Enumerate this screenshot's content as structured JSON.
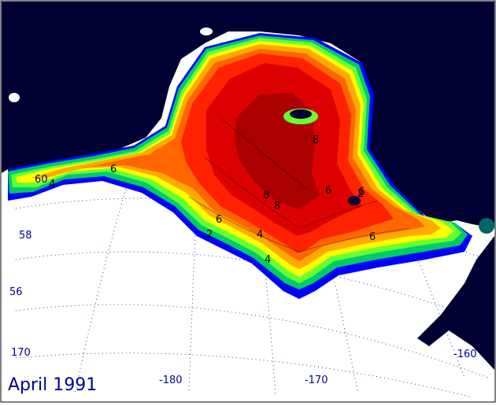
{
  "map": {
    "date_label": "April 1991",
    "latitude_labels": [
      "60",
      "58",
      "56"
    ],
    "longitude_labels": [
      "170",
      "-180",
      "-170",
      "-160"
    ],
    "contour_labels": [
      "2",
      "4",
      "4",
      "6",
      "6",
      "6",
      "6",
      "8",
      "8",
      "8",
      "6",
      "4",
      "2"
    ],
    "colors": {
      "land": "#000033",
      "ocean_background": "#ffffff",
      "grid": "#0000aa",
      "label_blue": "#000099",
      "levels": [
        "#0000ff",
        "#00cc66",
        "#66ff33",
        "#ffff00",
        "#ffaa00",
        "#ff6600",
        "#ff2200",
        "#dd0000",
        "#aa0000"
      ]
    }
  }
}
